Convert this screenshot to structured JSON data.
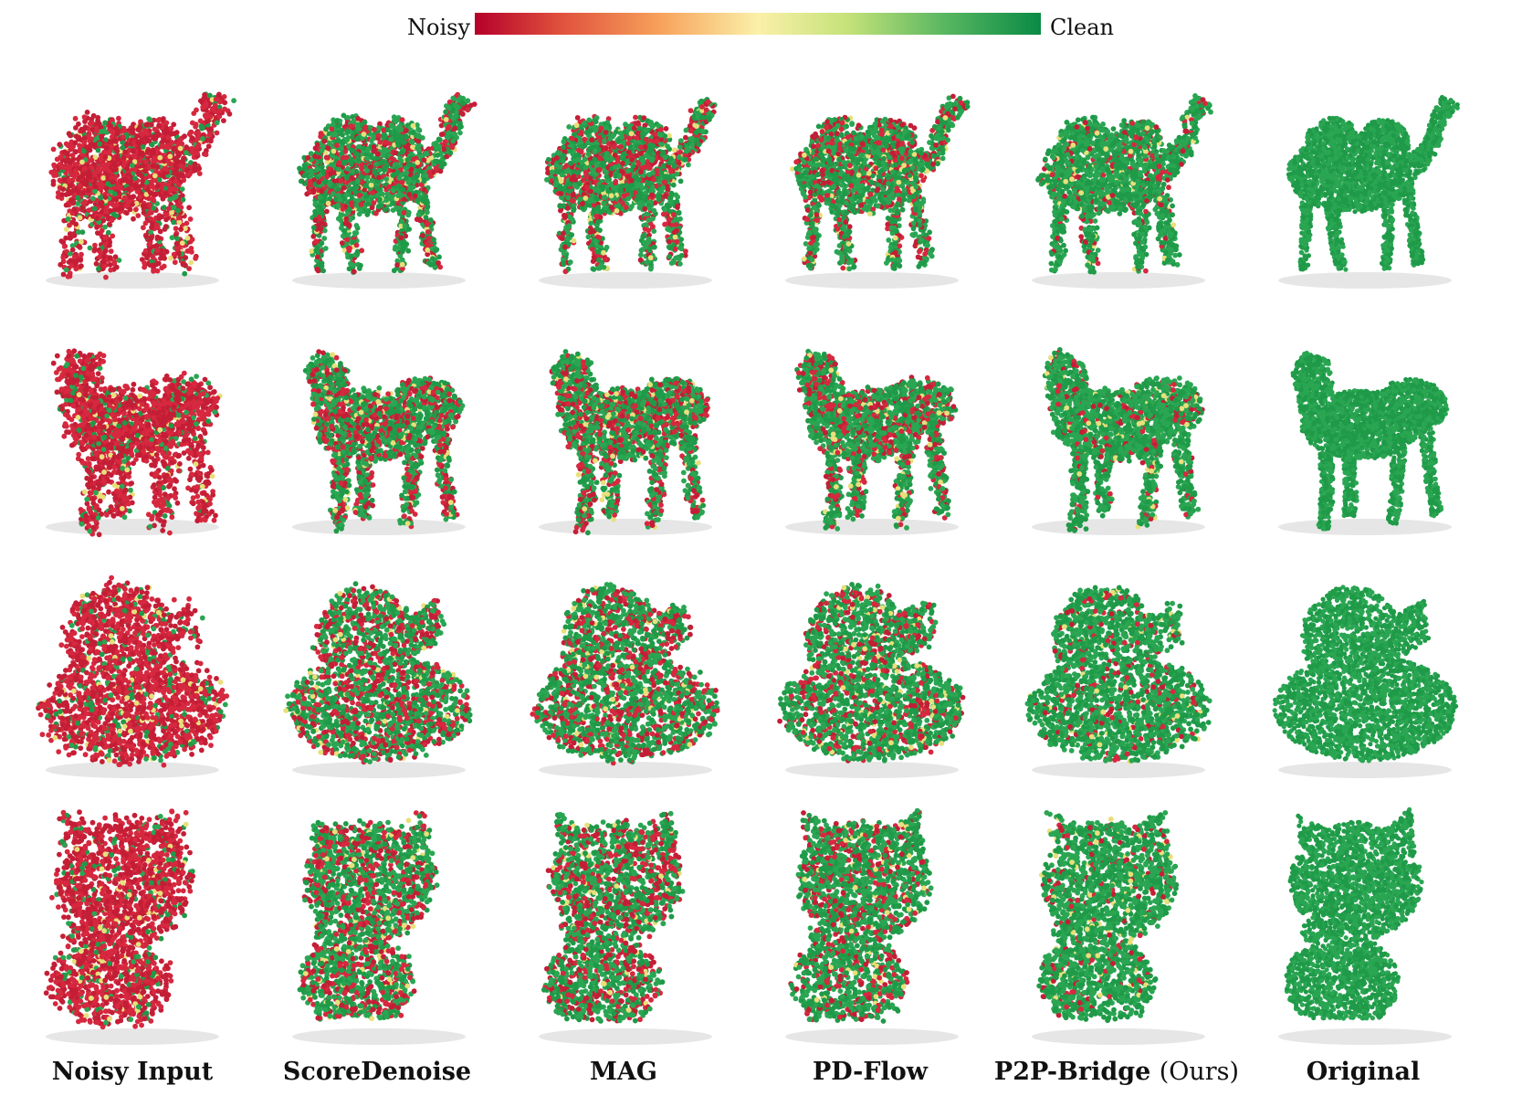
{
  "legend": {
    "noisy_label": "Noisy",
    "clean_label": "Clean"
  },
  "columns": [
    {
      "label": "Noisy Input"
    },
    {
      "label": "ScoreDenoise"
    },
    {
      "label": "MAG"
    },
    {
      "label": "PD-Flow"
    },
    {
      "label": "P2P-Bridge",
      "suffix": "(Ours)"
    },
    {
      "label": "Original"
    }
  ],
  "shapes": [
    "camel",
    "horse",
    "duck",
    "cat"
  ],
  "colors": {
    "noisy": "#d6283f",
    "clean": "#2aa653",
    "mid": "#e8e07a"
  },
  "clean_fractions": [
    0.12,
    0.62,
    0.62,
    0.7,
    0.85,
    1.0
  ]
}
